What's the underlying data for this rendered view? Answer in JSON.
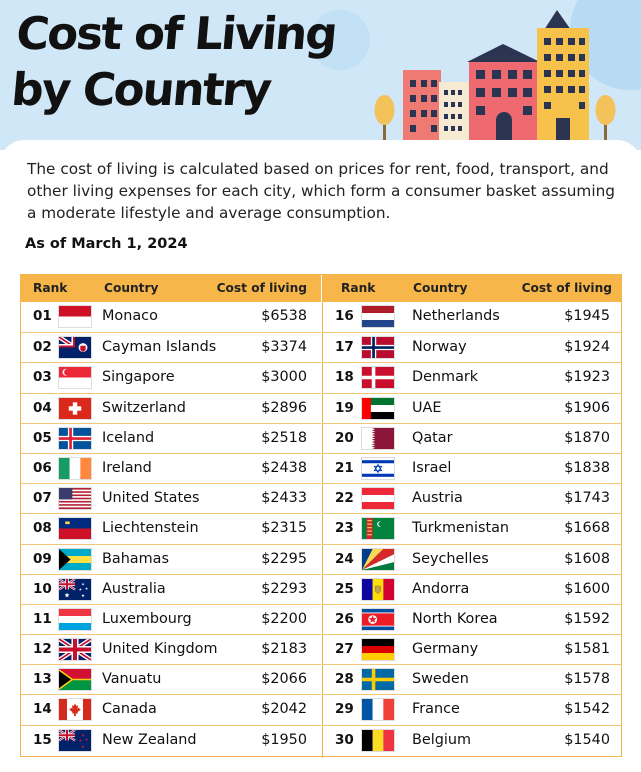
{
  "title_line1": "Cost of Living",
  "title_line2": "by Country",
  "intro": "The cost of living is calculated based on prices for rent, food, transport, and other living expenses for each city, which form a consumer basket assuming a moderate lifestyle and average consumption.",
  "as_of": "As of March 1, 2024",
  "columns": {
    "rank": "Rank",
    "country": "Country",
    "cost": "Cost of living"
  },
  "colors": {
    "header_bar": "#f7b64a",
    "grid": "#f2b54a",
    "sky": "#cfe7f7"
  },
  "chart_data": {
    "type": "table",
    "title": "Cost of Living by Country",
    "subtitle": "As of March 1, 2024",
    "columns": [
      "Rank",
      "Country",
      "Cost of living"
    ],
    "rows": [
      {
        "rank": "01",
        "country": "Monaco",
        "cost": "$6538",
        "flag": "monaco"
      },
      {
        "rank": "02",
        "country": "Cayman Islands",
        "cost": "$3374",
        "flag": "cayman"
      },
      {
        "rank": "03",
        "country": "Singapore",
        "cost": "$3000",
        "flag": "singapore"
      },
      {
        "rank": "04",
        "country": "Switzerland",
        "cost": "$2896",
        "flag": "switzerland"
      },
      {
        "rank": "05",
        "country": "Iceland",
        "cost": "$2518",
        "flag": "iceland"
      },
      {
        "rank": "06",
        "country": "Ireland",
        "cost": "$2438",
        "flag": "ireland"
      },
      {
        "rank": "07",
        "country": "United States",
        "cost": "$2433",
        "flag": "usa"
      },
      {
        "rank": "08",
        "country": "Liechtenstein",
        "cost": "$2315",
        "flag": "liechtenstein"
      },
      {
        "rank": "09",
        "country": "Bahamas",
        "cost": "$2295",
        "flag": "bahamas"
      },
      {
        "rank": "10",
        "country": "Australia",
        "cost": "$2293",
        "flag": "australia"
      },
      {
        "rank": "11",
        "country": "Luxembourg",
        "cost": "$2200",
        "flag": "luxembourg"
      },
      {
        "rank": "12",
        "country": "United Kingdom",
        "cost": "$2183",
        "flag": "uk"
      },
      {
        "rank": "13",
        "country": "Vanuatu",
        "cost": "$2066",
        "flag": "vanuatu"
      },
      {
        "rank": "14",
        "country": "Canada",
        "cost": "$2042",
        "flag": "canada"
      },
      {
        "rank": "15",
        "country": "New Zealand",
        "cost": "$1950",
        "flag": "newzealand"
      },
      {
        "rank": "16",
        "country": "Netherlands",
        "cost": "$1945",
        "flag": "netherlands"
      },
      {
        "rank": "17",
        "country": "Norway",
        "cost": "$1924",
        "flag": "norway"
      },
      {
        "rank": "18",
        "country": "Denmark",
        "cost": "$1923",
        "flag": "denmark"
      },
      {
        "rank": "19",
        "country": "UAE",
        "cost": "$1906",
        "flag": "uae"
      },
      {
        "rank": "20",
        "country": "Qatar",
        "cost": "$1870",
        "flag": "qatar"
      },
      {
        "rank": "21",
        "country": "Israel",
        "cost": "$1838",
        "flag": "israel"
      },
      {
        "rank": "22",
        "country": "Austria",
        "cost": "$1743",
        "flag": "austria"
      },
      {
        "rank": "23",
        "country": "Turkmenistan",
        "cost": "$1668",
        "flag": "turkmenistan"
      },
      {
        "rank": "24",
        "country": "Seychelles",
        "cost": "$1608",
        "flag": "seychelles"
      },
      {
        "rank": "25",
        "country": "Andorra",
        "cost": "$1600",
        "flag": "andorra"
      },
      {
        "rank": "26",
        "country": "North Korea",
        "cost": "$1592",
        "flag": "northkorea"
      },
      {
        "rank": "27",
        "country": "Germany",
        "cost": "$1581",
        "flag": "germany"
      },
      {
        "rank": "28",
        "country": "Sweden",
        "cost": "$1578",
        "flag": "sweden"
      },
      {
        "rank": "29",
        "country": "France",
        "cost": "$1542",
        "flag": "france"
      },
      {
        "rank": "30",
        "country": "Belgium",
        "cost": "$1540",
        "flag": "belgium"
      }
    ]
  }
}
